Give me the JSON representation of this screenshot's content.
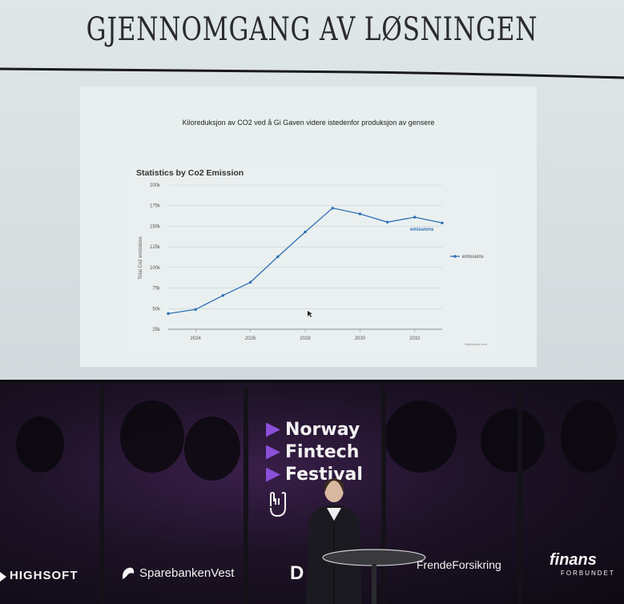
{
  "slide": {
    "title": "GJENNOMGANG AV LØSNINGEN",
    "subtitle": "Kiloreduksjon av CO2 ved å Gi Gaven videre istedenfor produksjon av gensere",
    "credit": "Highcharts.com"
  },
  "chart_data": {
    "type": "line",
    "title": "Statistics by Co2 Emission",
    "ylabel": "Total Co2 emissions",
    "xlabel": "",
    "ylim": [
      25000,
      200000
    ],
    "xlim": [
      2023,
      2033
    ],
    "y_ticks": [
      25000,
      50000,
      75000,
      100000,
      125000,
      150000,
      175000,
      200000
    ],
    "y_tick_labels": [
      "25k",
      "50k",
      "75k",
      "100k",
      "125k",
      "150k",
      "175k",
      "200k"
    ],
    "x_ticks": [
      2024,
      2026,
      2028,
      2030,
      2032
    ],
    "x_tick_labels": [
      "2024",
      "2026",
      "2028",
      "2030",
      "2032"
    ],
    "grid": true,
    "legend": "right",
    "series": [
      {
        "name": "emissions",
        "color": "#2f6fb5",
        "x": [
          2023,
          2024,
          2025,
          2026,
          2027,
          2028,
          2029,
          2030,
          2031,
          2032,
          2033
        ],
        "values": [
          44000,
          49000,
          66000,
          82000,
          113000,
          143000,
          172000,
          165000,
          155000,
          161000,
          154000
        ]
      }
    ],
    "series_label": "emissions"
  },
  "stage": {
    "festival": [
      "Norway",
      "Fintech",
      "Festival"
    ],
    "accent": "#8b4fd8"
  },
  "sponsors": {
    "highsoft": "HIGHSOFT",
    "sparebanken": "SparebankenVest",
    "frende": "FrendeForsikring",
    "finans": "finans",
    "finans_sub": "FORBUNDET",
    "d": "D"
  }
}
